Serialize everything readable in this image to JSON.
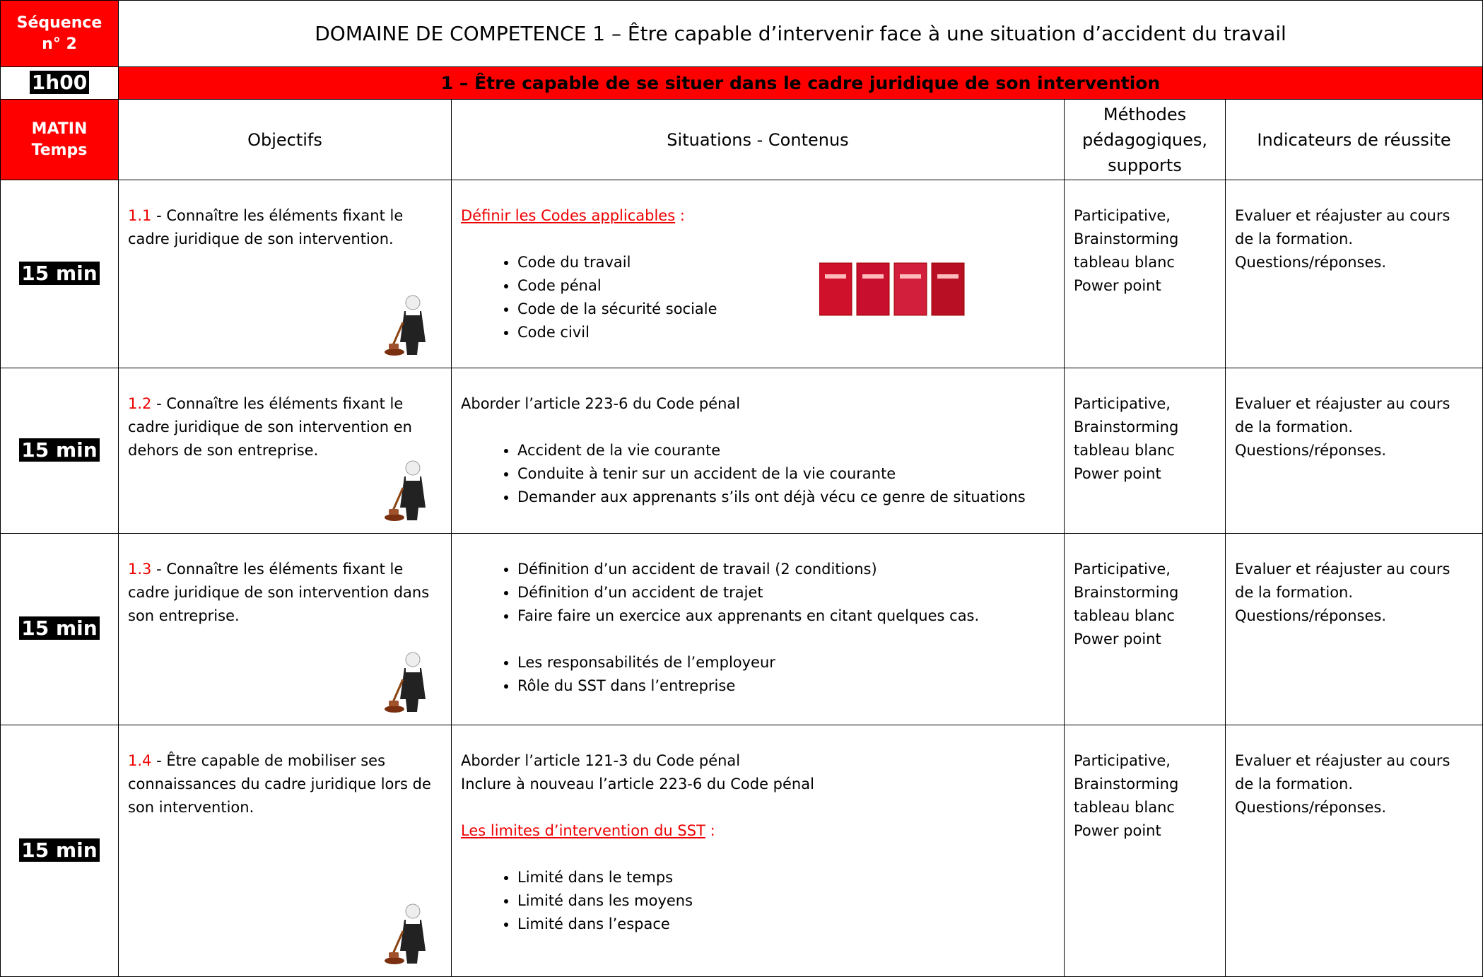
{
  "header": {
    "sequence": "Séquence n° 2",
    "title": "DOMAINE DE COMPETENCE 1 – Être capable d’intervenir face à une situation d’accident du travail",
    "duration": "1h00",
    "subtitle": "1 – Être capable de se situer dans le cadre juridique de son intervention"
  },
  "table": {
    "time_header": [
      "MATIN",
      "Temps"
    ],
    "columns": [
      "Objectifs",
      "Situations - Contenus",
      "Méthodes pédagogiques, supports",
      "Indicateurs de réussite"
    ],
    "rows": [
      {
        "time": "15 min",
        "number": "1.1",
        "objective": "- Connaître les éléments fixant le cadre juridique de son intervention.",
        "content": [
          {
            "link": "Définir les Codes applicables",
            "after": ":"
          },
          {
            "items": [
              "Code du travail",
              "Code pénal",
              "Code de la sécurité sociale",
              "Code civil"
            ]
          }
        ],
        "methods": [
          "Participative,",
          "Brainstorming",
          "tableau blanc",
          "Power point"
        ],
        "indicators": [
          "Evaluer et réajuster au cours de la formation.",
          "Questions/réponses."
        ]
      },
      {
        "time": "15 min",
        "number": "1.2",
        "objective": "- Connaître les éléments fixant le cadre juridique de son intervention en dehors de son entreprise.",
        "content": [
          {
            "text": "Aborder l’article 223-6 du Code pénal"
          },
          {
            "items": [
              "Accident de la vie courante",
              "Conduite à tenir sur un accident de la vie courante",
              "Demander aux apprenants s’ils ont déjà vécu ce genre de situations"
            ]
          }
        ],
        "methods": [
          "Participative,",
          "Brainstorming",
          "tableau blanc",
          "Power point"
        ],
        "indicators": [
          "Evaluer et réajuster au cours de la formation.",
          "Questions/réponses."
        ]
      },
      {
        "time": "15 min",
        "number": "1.3",
        "objective": "- Connaître les éléments fixant le cadre juridique de son intervention dans son entreprise.",
        "content": [
          {
            "items": [
              "Définition d’un accident de travail (2 conditions)",
              "Définition d’un accident de trajet",
              "Faire faire un exercice aux apprenants en citant quelques cas."
            ]
          },
          {
            "items": [
              "Les responsabilités de l’employeur",
              "Rôle du SST dans l’entreprise"
            ]
          }
        ],
        "methods": [
          "Participative,",
          "Brainstorming",
          "tableau blanc",
          "Power point"
        ],
        "indicators": [
          "Evaluer et réajuster au cours de la formation.",
          "Questions/réponses."
        ]
      },
      {
        "time": "15 min",
        "number": "1.4",
        "objective": "- Être capable de mobiliser ses connaissances du cadre juridique lors de son intervention.",
        "content": [
          {
            "text": "Aborder l’article 121-3 du Code pénal"
          },
          {
            "text": "Inclure à nouveau l’article 223-6 du Code pénal"
          },
          {
            "link": "Les limites d’intervention du SST",
            "after": ":"
          },
          {
            "items": [
              "Limité dans le temps",
              "Limité dans les moyens",
              "Limité dans l’espace"
            ]
          }
        ],
        "methods": [
          "Participative,",
          "Brainstorming",
          "tableau blanc",
          "Power point"
        ],
        "indicators": [
          "Evaluer et réajuster au cours de la formation.",
          "Questions/réponses."
        ]
      }
    ]
  }
}
